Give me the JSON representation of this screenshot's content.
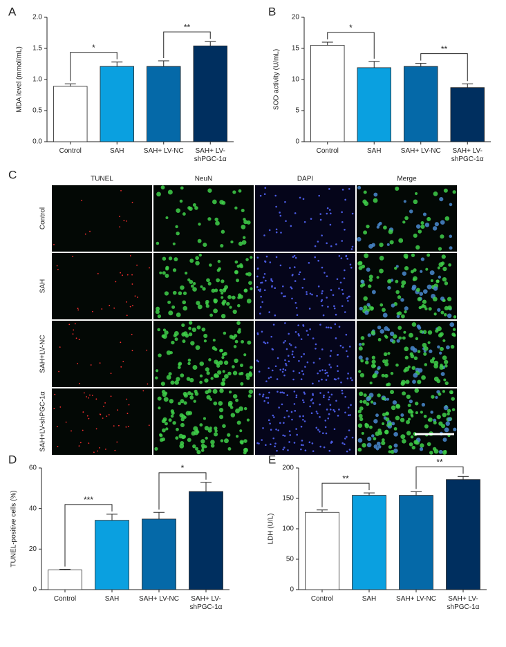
{
  "chart_data": [
    {
      "type": "bar",
      "panel": "A",
      "y_label": "MDA level (mmol/mL)",
      "categories": [
        "Control",
        "SAH",
        "SAH+ LV-NC",
        "SAH+ LV-shPGC-1α"
      ],
      "values": [
        0.89,
        1.21,
        1.21,
        1.54
      ],
      "errors": [
        0.04,
        0.07,
        0.09,
        0.07
      ],
      "colors": [
        "#ffffff",
        "#0aa0e0",
        "#0569a8",
        "#002f5f"
      ],
      "ylim": [
        0,
        2
      ],
      "yticks": [
        {
          "value": 0,
          "label": "0.0"
        },
        {
          "value": 0.5,
          "label": "0.5"
        },
        {
          "value": 1,
          "label": "1.0"
        },
        {
          "value": 1.5,
          "label": "1.5"
        },
        {
          "value": 2,
          "label": "2.0"
        }
      ],
      "annotations": [
        {
          "text": "*",
          "between": [
            0,
            1
          ]
        },
        {
          "text": "**",
          "between": [
            2,
            3
          ]
        }
      ]
    },
    {
      "type": "bar",
      "panel": "B",
      "y_label": "SOD activity (U/mL)",
      "categories": [
        "Control",
        "SAH",
        "SAH+ LV-NC",
        "SAH+ LV-shPGC-1α"
      ],
      "values": [
        15.5,
        11.9,
        12.1,
        8.7
      ],
      "errors": [
        0.5,
        1.0,
        0.5,
        0.6
      ],
      "colors": [
        "#ffffff",
        "#0aa0e0",
        "#0569a8",
        "#002f5f"
      ],
      "ylim": [
        0,
        20
      ],
      "yticks": [
        0,
        5,
        10,
        15,
        20
      ],
      "annotations": [
        {
          "text": "*",
          "between": [
            0,
            1
          ]
        },
        {
          "text": "**",
          "between": [
            2,
            3
          ]
        }
      ]
    },
    {
      "type": "bar",
      "panel": "D",
      "y_label": "TUNEL-positive cells (%)",
      "categories": [
        "Control",
        "SAH",
        "SAH+ LV-NC",
        "SAH+ LV-shPGC-1α"
      ],
      "values": [
        9.7,
        34.2,
        34.8,
        48.4
      ],
      "errors": [
        0.3,
        3.0,
        3.3,
        4.5
      ],
      "colors": [
        "#ffffff",
        "#0aa0e0",
        "#0569a8",
        "#002f5f"
      ],
      "ylim": [
        0,
        60
      ],
      "yticks": [
        0,
        20,
        40,
        60
      ],
      "annotations": [
        {
          "text": "***",
          "between": [
            0,
            1
          ]
        },
        {
          "text": "*",
          "between": [
            2,
            3
          ]
        }
      ]
    },
    {
      "type": "bar",
      "panel": "E",
      "y_label": "LDH (U/L)",
      "categories": [
        "Control",
        "SAH",
        "SAH+ LV-NC",
        "SAH+ LV-shPGC-1α"
      ],
      "values": [
        127,
        155,
        155,
        181
      ],
      "errors": [
        4,
        4,
        6,
        5
      ],
      "colors": [
        "#ffffff",
        "#0aa0e0",
        "#0569a8",
        "#002f5f"
      ],
      "ylim": [
        0,
        200
      ],
      "yticks": [
        0,
        50,
        100,
        150,
        200
      ],
      "annotations": [
        {
          "text": "**",
          "between": [
            0,
            1
          ]
        },
        {
          "text": "**",
          "between": [
            2,
            3
          ]
        }
      ]
    }
  ],
  "panel_c": {
    "panel": "C",
    "columns": [
      {
        "label": "TUNEL",
        "color": "#e02020"
      },
      {
        "label": "NeuN",
        "color": "#5cc02a"
      },
      {
        "label": "DAPI",
        "color": "#3a3aa8"
      },
      {
        "label": "Merge",
        "color": "#222222"
      }
    ],
    "rows": [
      "Control",
      "SAH",
      "SAH+LV-NC",
      "SAH+LV-shPGC-1α"
    ]
  }
}
